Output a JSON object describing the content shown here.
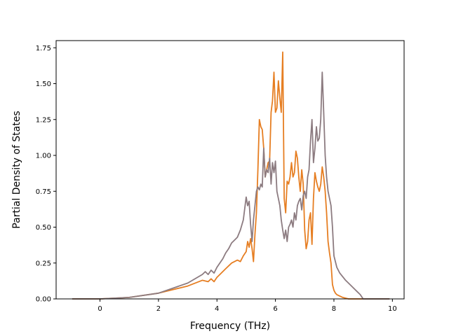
{
  "chart_data": {
    "type": "line",
    "title": "",
    "xlabel": "Frequency (THz)",
    "ylabel": "Partial Density of States",
    "xlim": [
      -1.5,
      10.4
    ],
    "ylim": [
      0,
      1.8
    ],
    "xticks": [
      0,
      2,
      4,
      6,
      8,
      10
    ],
    "xtick_labels": [
      "0",
      "2",
      "4",
      "6",
      "8",
      "10"
    ],
    "yticks": [
      0.0,
      0.25,
      0.5,
      0.75,
      1.0,
      1.25,
      1.5,
      1.75
    ],
    "ytick_labels": [
      "0.00",
      "0.25",
      "0.50",
      "0.75",
      "1.00",
      "1.25",
      "1.50",
      "1.75"
    ],
    "grid": false,
    "legend": false,
    "series": [
      {
        "color": "#e67e22",
        "x": [
          -0.95,
          0.0,
          1.0,
          2.0,
          3.0,
          3.5,
          3.7,
          3.8,
          3.9,
          4.0,
          4.1,
          4.3,
          4.5,
          4.7,
          4.8,
          4.9,
          5.0,
          5.05,
          5.1,
          5.15,
          5.2,
          5.25,
          5.3,
          5.35,
          5.4,
          5.45,
          5.5,
          5.55,
          5.6,
          5.65,
          5.7,
          5.75,
          5.8,
          5.85,
          5.9,
          5.95,
          6.0,
          6.05,
          6.1,
          6.15,
          6.2,
          6.25,
          6.3,
          6.35,
          6.4,
          6.45,
          6.5,
          6.55,
          6.6,
          6.65,
          6.7,
          6.75,
          6.8,
          6.85,
          6.9,
          6.95,
          7.0,
          7.05,
          7.1,
          7.15,
          7.2,
          7.25,
          7.3,
          7.35,
          7.4,
          7.45,
          7.5,
          7.55,
          7.6,
          7.65,
          7.7,
          7.75,
          7.8,
          7.85,
          7.9,
          7.95,
          8.0,
          8.05,
          8.1,
          8.2,
          8.3,
          8.5,
          8.7,
          8.9,
          9.0,
          9.5,
          9.9
        ],
        "y": [
          0.0,
          0.0,
          0.01,
          0.04,
          0.09,
          0.13,
          0.12,
          0.14,
          0.12,
          0.15,
          0.17,
          0.21,
          0.25,
          0.27,
          0.26,
          0.3,
          0.33,
          0.4,
          0.36,
          0.42,
          0.35,
          0.26,
          0.45,
          0.6,
          0.9,
          1.25,
          1.2,
          1.18,
          1.05,
          0.85,
          0.9,
          0.95,
          0.96,
          1.3,
          1.38,
          1.58,
          1.3,
          1.33,
          1.52,
          1.4,
          1.3,
          1.72,
          0.7,
          0.6,
          0.82,
          0.8,
          0.85,
          0.95,
          0.85,
          0.88,
          1.03,
          0.98,
          0.85,
          0.75,
          0.9,
          0.8,
          0.48,
          0.35,
          0.4,
          0.55,
          0.6,
          0.38,
          0.7,
          0.88,
          0.82,
          0.78,
          0.75,
          0.8,
          0.92,
          0.85,
          0.75,
          0.6,
          0.4,
          0.32,
          0.25,
          0.1,
          0.06,
          0.04,
          0.03,
          0.02,
          0.01,
          0.0,
          0.0,
          0.0,
          0.0,
          0.0,
          0.0
        ]
      },
      {
        "color": "#8c7b80",
        "x": [
          -0.95,
          0.0,
          1.0,
          2.0,
          3.0,
          3.5,
          3.6,
          3.7,
          3.8,
          3.9,
          4.0,
          4.1,
          4.2,
          4.3,
          4.4,
          4.5,
          4.6,
          4.7,
          4.8,
          4.9,
          5.0,
          5.05,
          5.1,
          5.15,
          5.2,
          5.25,
          5.3,
          5.35,
          5.4,
          5.45,
          5.5,
          5.55,
          5.6,
          5.65,
          5.7,
          5.75,
          5.8,
          5.85,
          5.9,
          5.95,
          6.0,
          6.05,
          6.1,
          6.15,
          6.2,
          6.25,
          6.3,
          6.35,
          6.4,
          6.45,
          6.5,
          6.55,
          6.6,
          6.65,
          6.7,
          6.75,
          6.8,
          6.85,
          6.9,
          6.95,
          7.0,
          7.05,
          7.1,
          7.15,
          7.2,
          7.25,
          7.3,
          7.35,
          7.4,
          7.45,
          7.5,
          7.55,
          7.6,
          7.65,
          7.7,
          7.75,
          7.8,
          7.85,
          7.9,
          7.95,
          8.0,
          8.1,
          8.2,
          8.4,
          8.6,
          8.8,
          8.9,
          9.0,
          9.5,
          9.9
        ],
        "y": [
          0.0,
          0.0,
          0.01,
          0.04,
          0.11,
          0.17,
          0.19,
          0.17,
          0.2,
          0.18,
          0.22,
          0.25,
          0.28,
          0.32,
          0.35,
          0.39,
          0.41,
          0.43,
          0.48,
          0.55,
          0.71,
          0.65,
          0.68,
          0.52,
          0.4,
          0.55,
          0.65,
          0.75,
          0.78,
          0.76,
          0.8,
          0.78,
          1.05,
          0.85,
          0.9,
          0.88,
          0.98,
          0.8,
          0.95,
          0.88,
          0.96,
          0.75,
          0.7,
          0.65,
          0.55,
          0.48,
          0.42,
          0.48,
          0.4,
          0.5,
          0.52,
          0.55,
          0.5,
          0.6,
          0.55,
          0.65,
          0.68,
          0.7,
          0.62,
          0.72,
          0.75,
          0.7,
          0.85,
          0.9,
          1.1,
          1.25,
          0.95,
          1.05,
          1.2,
          1.1,
          1.12,
          1.25,
          1.58,
          1.3,
          1.0,
          0.85,
          0.75,
          0.7,
          0.65,
          0.5,
          0.3,
          0.22,
          0.18,
          0.13,
          0.09,
          0.05,
          0.03,
          0.0,
          0.0,
          0.0
        ]
      }
    ]
  }
}
